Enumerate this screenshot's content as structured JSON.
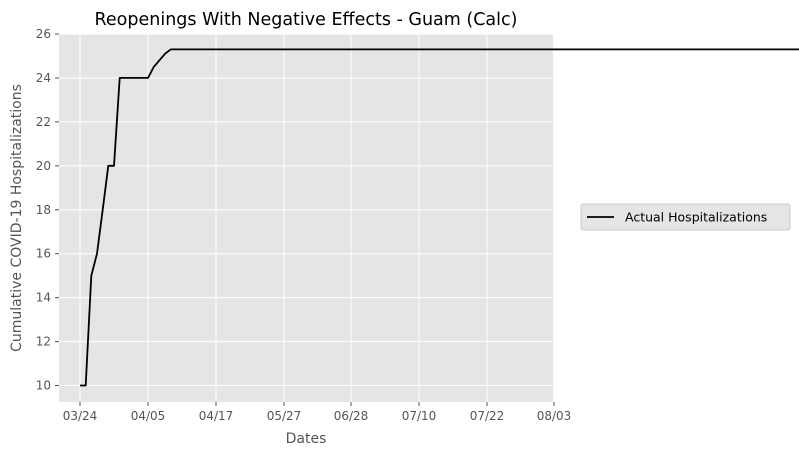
{
  "chart_data": {
    "type": "line",
    "title": "Reopenings With Negative Effects - Guam (Calc)",
    "xlabel": "Dates",
    "ylabel": "Cumulative COVID-19 Hospitalizations",
    "x_ticks": [
      "03/24",
      "04/05",
      "04/17",
      "05/27",
      "06/28",
      "07/10",
      "07/22",
      "08/03"
    ],
    "y_ticks": [
      10,
      12,
      14,
      16,
      18,
      20,
      22,
      24,
      26
    ],
    "ylim": [
      9.25,
      26
    ],
    "grid": true,
    "legend_position": "right",
    "series": [
      {
        "name": "Actual Hospitalizations",
        "color": "#000000",
        "points": [
          [
            "03/24",
            10
          ],
          [
            "03/25",
            10
          ],
          [
            "03/26",
            15
          ],
          [
            "03/27",
            16
          ],
          [
            "03/28",
            18
          ],
          [
            "03/29",
            20
          ],
          [
            "03/30",
            20
          ],
          [
            "03/31",
            24
          ],
          [
            "04/01",
            24
          ],
          [
            "04/02",
            24
          ],
          [
            "04/03",
            24
          ],
          [
            "04/04",
            24
          ],
          [
            "04/05",
            24
          ],
          [
            "04/06",
            24.5
          ],
          [
            "04/07",
            24.8
          ],
          [
            "04/08",
            25.1
          ],
          [
            "04/09",
            25.3
          ],
          [
            "04/10",
            25.3
          ],
          [
            "07/29",
            25.3
          ]
        ]
      }
    ]
  }
}
